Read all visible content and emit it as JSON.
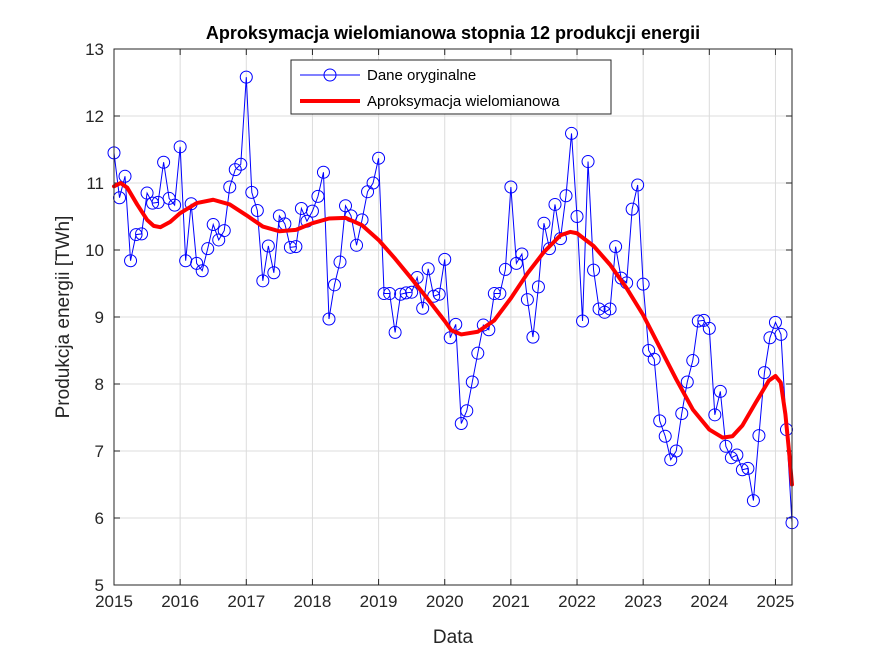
{
  "chart_data": {
    "type": "line",
    "title": "Aproksymacja wielomianowa stopnia 12 produkcji energii",
    "xlabel": "Data",
    "ylabel": "Produkcja energii [TWh]",
    "xlim": [
      2015.0,
      2025.25
    ],
    "ylim": [
      5,
      13
    ],
    "x_ticks": [
      "2015",
      "2016",
      "2017",
      "2018",
      "2019",
      "2020",
      "2021",
      "2022",
      "2023",
      "2024",
      "2025"
    ],
    "y_ticks": [
      "5",
      "6",
      "7",
      "8",
      "9",
      "10",
      "11",
      "12",
      "13"
    ],
    "grid": true,
    "legend_position": "top-center",
    "x_start": 2015.0,
    "x_step_months": 1,
    "series": [
      {
        "name": "Dane oryginalne",
        "color": "#0000ff",
        "marker": "circle",
        "values": [
          11.45,
          10.78,
          11.1,
          9.84,
          10.23,
          10.24,
          10.85,
          10.7,
          10.71,
          11.31,
          10.77,
          10.67,
          11.54,
          9.84,
          10.69,
          9.8,
          9.69,
          10.02,
          10.38,
          10.15,
          10.29,
          10.94,
          11.2,
          11.28,
          12.58,
          10.86,
          10.59,
          9.54,
          10.06,
          9.66,
          10.51,
          10.39,
          10.04,
          10.05,
          10.62,
          10.43,
          10.58,
          10.8,
          11.16,
          8.97,
          9.48,
          9.82,
          10.66,
          10.51,
          10.07,
          10.45,
          10.87,
          11.0,
          11.37,
          9.35,
          9.35,
          8.77,
          9.34,
          9.36,
          9.37,
          9.59,
          9.13,
          9.72,
          9.31,
          9.34,
          9.86,
          8.69,
          8.89,
          7.41,
          7.6,
          8.03,
          8.46,
          8.88,
          8.81,
          9.35,
          9.35,
          9.71,
          10.94,
          9.8,
          9.94,
          9.26,
          8.7,
          9.45,
          10.4,
          10.02,
          10.68,
          10.17,
          10.81,
          11.74,
          10.5,
          8.94,
          11.32,
          9.7,
          9.12,
          9.07,
          9.12,
          10.05,
          9.58,
          9.51,
          10.61,
          10.97,
          9.49,
          8.5,
          8.37,
          7.45,
          7.22,
          6.87,
          7.0,
          7.56,
          8.03,
          8.35,
          8.94,
          8.95,
          8.83,
          7.54,
          7.89,
          7.07,
          6.9,
          6.94,
          6.72,
          6.74,
          6.26,
          7.23,
          8.17,
          8.69,
          8.92,
          8.74,
          7.32,
          5.93
        ]
      },
      {
        "name": "Aproksymacja wielomianowa",
        "color": "#ff0000",
        "points": [
          [
            2015.0,
            10.95
          ],
          [
            2015.1,
            11.0
          ],
          [
            2015.2,
            10.93
          ],
          [
            2015.35,
            10.68
          ],
          [
            2015.5,
            10.45
          ],
          [
            2015.6,
            10.36
          ],
          [
            2015.7,
            10.34
          ],
          [
            2015.85,
            10.42
          ],
          [
            2016.0,
            10.55
          ],
          [
            2016.25,
            10.7
          ],
          [
            2016.5,
            10.75
          ],
          [
            2016.75,
            10.68
          ],
          [
            2017.0,
            10.52
          ],
          [
            2017.25,
            10.35
          ],
          [
            2017.5,
            10.28
          ],
          [
            2017.75,
            10.3
          ],
          [
            2018.0,
            10.4
          ],
          [
            2018.25,
            10.47
          ],
          [
            2018.5,
            10.48
          ],
          [
            2018.75,
            10.37
          ],
          [
            2019.0,
            10.15
          ],
          [
            2019.25,
            9.87
          ],
          [
            2019.5,
            9.57
          ],
          [
            2019.75,
            9.26
          ],
          [
            2020.0,
            8.94
          ],
          [
            2020.1,
            8.8
          ],
          [
            2020.25,
            8.74
          ],
          [
            2020.5,
            8.78
          ],
          [
            2020.75,
            8.95
          ],
          [
            2021.0,
            9.28
          ],
          [
            2021.25,
            9.65
          ],
          [
            2021.5,
            9.97
          ],
          [
            2021.75,
            10.22
          ],
          [
            2021.9,
            10.27
          ],
          [
            2022.0,
            10.25
          ],
          [
            2022.25,
            10.06
          ],
          [
            2022.5,
            9.78
          ],
          [
            2022.75,
            9.43
          ],
          [
            2023.0,
            9.03
          ],
          [
            2023.25,
            8.55
          ],
          [
            2023.5,
            8.07
          ],
          [
            2023.75,
            7.62
          ],
          [
            2024.0,
            7.32
          ],
          [
            2024.2,
            7.2
          ],
          [
            2024.35,
            7.22
          ],
          [
            2024.5,
            7.38
          ],
          [
            2024.7,
            7.72
          ],
          [
            2024.9,
            8.05
          ],
          [
            2025.0,
            8.12
          ],
          [
            2025.08,
            8.02
          ],
          [
            2025.15,
            7.55
          ],
          [
            2025.2,
            7.05
          ],
          [
            2025.25,
            6.5
          ]
        ]
      }
    ]
  }
}
